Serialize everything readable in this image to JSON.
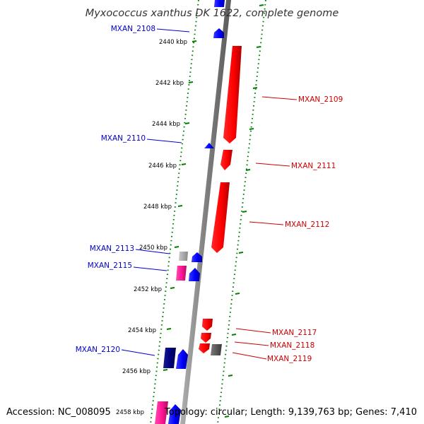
{
  "header": {
    "title": "Myxococcus xanthus DK 1622, complete genome"
  },
  "footer": {
    "accession": "Accession: NC_008095",
    "summary": "Topology: circular; Length: 9,139,763 bp; Genes: 7,410"
  },
  "ruler": {
    "labels": [
      "2440 kbp",
      "2442 kbp",
      "2444 kbp",
      "2446 kbp",
      "2448 kbp",
      "2450 kbp",
      "2452 kbp",
      "2454 kbp",
      "2456 kbp",
      "2458 kbp"
    ]
  },
  "gene_labels": {
    "reverse": [
      "MXAN_2108",
      "MXAN_2110",
      "MXAN_2113",
      "MXAN_2115",
      "MXAN_2120"
    ],
    "forward": [
      "MXAN_2109",
      "MXAN_2111",
      "MXAN_2112",
      "MXAN_2117",
      "MXAN_2118",
      "MXAN_2119"
    ]
  },
  "colors": {
    "forward_gene": "#ff0000",
    "reverse_gene": "#0000ff",
    "dark_gene": "#000080",
    "pink_gene": "#ff1493",
    "grey_gene": "#999999",
    "backbone": "#808080",
    "ruler_ticks": "#008000",
    "forward_label": "#cc0000",
    "reverse_label": "#0000cc",
    "title": "#333333"
  }
}
